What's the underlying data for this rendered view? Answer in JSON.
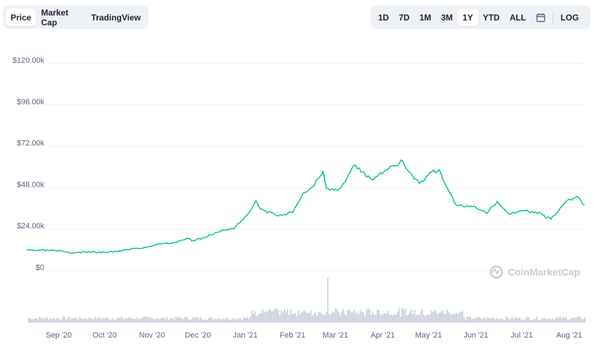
{
  "tabs": [
    {
      "label": "Price",
      "active": true
    },
    {
      "label": "Market Cap",
      "active": false
    },
    {
      "label": "TradingView",
      "active": false
    }
  ],
  "ranges": [
    {
      "label": "1D",
      "active": false
    },
    {
      "label": "7D",
      "active": false
    },
    {
      "label": "1M",
      "active": false
    },
    {
      "label": "3M",
      "active": false
    },
    {
      "label": "1Y",
      "active": true
    },
    {
      "label": "YTD",
      "active": false
    },
    {
      "label": "ALL",
      "active": false
    }
  ],
  "calendar_icon": "calendar-icon",
  "log_label": "LOG",
  "watermark": "CoinMarketCap",
  "colors": {
    "line": "#16c784",
    "volume": "#c9cfdd",
    "grid": "#eff2f5",
    "text": "#58667e"
  },
  "chart_data": {
    "type": "line",
    "ylim": [
      0,
      120000
    ],
    "yticks": [
      0,
      24000,
      48000,
      72000,
      96000,
      120000
    ],
    "ytick_labels": [
      "$0",
      "$24.00k",
      "$48.00k",
      "$72.00k",
      "$96.00k",
      "$120.00k"
    ],
    "xtick_labels": [
      "Sep '20",
      "Oct '20",
      "Nov '20",
      "Dec '20",
      "Jan '21",
      "Feb '21",
      "Mar '21",
      "Apr '21",
      "May '21",
      "Jun '21",
      "Jul '21",
      "Aug '21"
    ],
    "grid": true,
    "series": [
      {
        "x": [
          "2020-08-11",
          "2020-08-20",
          "2020-08-31",
          "2020-09-08",
          "2020-09-20",
          "2020-10-01",
          "2020-10-10",
          "2020-10-20",
          "2020-10-26",
          "2020-11-05",
          "2020-11-15",
          "2020-11-25",
          "2020-11-27",
          "2020-12-05",
          "2020-12-16",
          "2020-12-25",
          "2021-01-03",
          "2021-01-08",
          "2021-01-11",
          "2021-01-21",
          "2021-02-01",
          "2021-02-08",
          "2021-02-14",
          "2021-02-21",
          "2021-02-23",
          "2021-03-01",
          "2021-03-05",
          "2021-03-13",
          "2021-03-25",
          "2021-04-04",
          "2021-04-14",
          "2021-04-17",
          "2021-04-25",
          "2021-05-03",
          "2021-05-08",
          "2021-05-12",
          "2021-05-19",
          "2021-05-25",
          "2021-06-01",
          "2021-06-08",
          "2021-06-15",
          "2021-06-22",
          "2021-07-01",
          "2021-07-10",
          "2021-07-20",
          "2021-07-25",
          "2021-07-30",
          "2021-08-06",
          "2021-08-11"
        ],
        "values": [
          11700,
          11800,
          11500,
          10300,
          10800,
          10600,
          11300,
          12800,
          13000,
          15500,
          16000,
          18600,
          17200,
          19200,
          23000,
          24700,
          33000,
          40500,
          35500,
          32000,
          33500,
          45000,
          48500,
          57500,
          47500,
          47000,
          48500,
          61000,
          52500,
          58500,
          63500,
          58500,
          50500,
          57000,
          58500,
          50000,
          38000,
          37000,
          36500,
          33000,
          40000,
          33000,
          34700,
          34000,
          29700,
          34500,
          40000,
          43000,
          38000
        ]
      }
    ]
  }
}
